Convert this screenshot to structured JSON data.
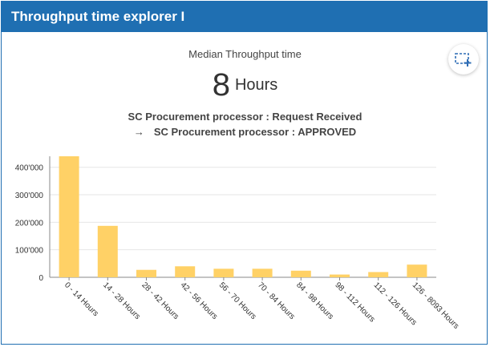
{
  "header": {
    "title": "Throughput time explorer I"
  },
  "summary": {
    "label": "Median Throughput time",
    "value": "8",
    "unit": "Hours"
  },
  "transition": {
    "from": "SC Procurement processor : Request Received",
    "arrow": "→",
    "to": "SC Procurement processor : APPROVED"
  },
  "icons": {
    "corner_button": "add-selection-icon"
  },
  "colors": {
    "header_bg": "#1f6fb2",
    "bar": "#ffd166"
  },
  "chart_data": {
    "type": "bar",
    "categories": [
      "0 - 14 Hours",
      "14 - 28 Hours",
      "28 - 42 Hours",
      "42 - 56 Hours",
      "56 - 70 Hours",
      "70 - 84 Hours",
      "84 - 98 Hours",
      "98 - 112 Hours",
      "112 - 126 Hours",
      "126 - 8093 Hours"
    ],
    "values": [
      440000,
      187000,
      27000,
      40000,
      31000,
      31000,
      24000,
      10000,
      19000,
      46000
    ],
    "ylim": [
      0,
      440000
    ],
    "yticks": [
      "0",
      "100'000",
      "200'000",
      "300'000",
      "400'000"
    ],
    "ytick_values": [
      0,
      100000,
      200000,
      300000,
      400000
    ],
    "grid": true,
    "xlabel": "",
    "ylabel": ""
  }
}
